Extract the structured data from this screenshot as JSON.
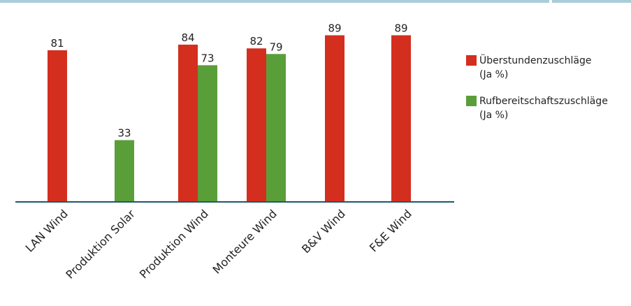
{
  "chart_data": {
    "type": "bar",
    "categories": [
      "LAN Wind",
      "Produktion Solar",
      "Produktion Wind",
      "Monteure Wind",
      "B&V Wind",
      "F&E Wind"
    ],
    "series": [
      {
        "name": "Überstundenzuschläge (Ja %)",
        "legend_lines": [
          "Überstundenzuschläge",
          "(Ja %)"
        ],
        "color": "#d42e1f",
        "values": [
          81,
          null,
          84,
          82,
          89,
          89
        ]
      },
      {
        "name": "Rufbereitschaftszuschläge (Ja %)",
        "legend_lines": [
          "Rufbereitschaftszuschläge",
          "(Ja %)"
        ],
        "color": "#5a9e3a",
        "values": [
          null,
          33,
          73,
          79,
          null,
          null
        ]
      }
    ],
    "ylim": [
      0,
      100
    ],
    "grid": false,
    "legend_position": "right",
    "axis_color": "#1d5a6b",
    "title": "",
    "xlabel": "",
    "ylabel": ""
  }
}
